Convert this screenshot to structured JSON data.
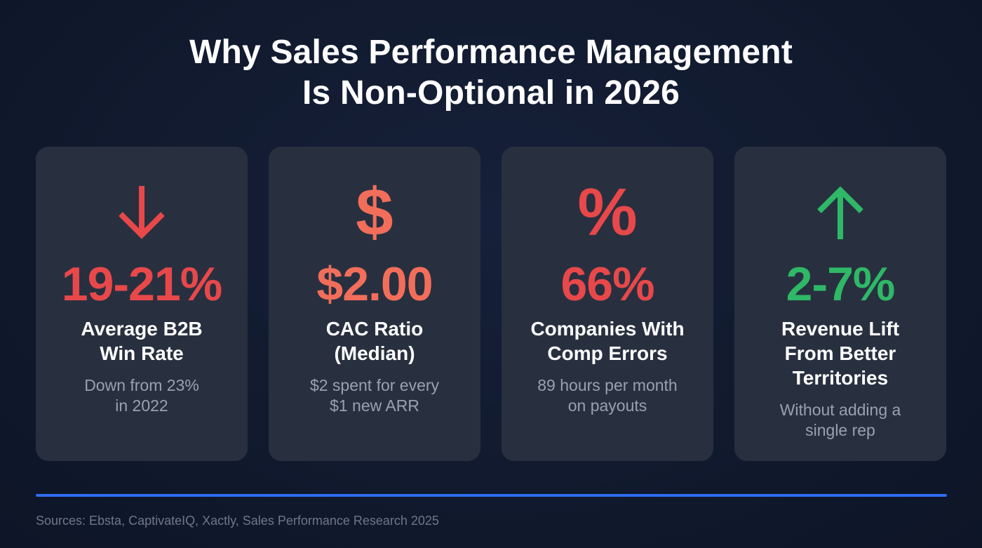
{
  "title": {
    "line1": "Why Sales Performance Management",
    "line2": "Is Non-Optional in 2026"
  },
  "cards": [
    {
      "icon": "arrow-down-icon",
      "color": "#e8484a",
      "value": "19-21%",
      "label_line1": "Average B2B",
      "label_line2": "Win Rate",
      "sub_line1": "Down from 23%",
      "sub_line2": "in 2022"
    },
    {
      "icon": "dollar-icon",
      "icon_glyph": "$",
      "color": "#f26e5a",
      "value": "$2.00",
      "label_line1": "CAC Ratio",
      "label_line2": "(Median)",
      "sub_line1": "$2 spent for every",
      "sub_line2": "$1 new ARR"
    },
    {
      "icon": "percent-icon",
      "icon_glyph": "%",
      "color": "#e8484a",
      "value": "66%",
      "label_line1": "Companies With",
      "label_line2": "Comp Errors",
      "sub_line1": "89 hours per month",
      "sub_line2": "on payouts"
    },
    {
      "icon": "arrow-up-icon",
      "color": "#2fb866",
      "value": "2-7%",
      "label_line1": "Revenue Lift",
      "label_line2": "From Better",
      "label_line3": "Territories",
      "sub_line1": "Without adding a",
      "sub_line2": "single rep"
    }
  ],
  "colors": {
    "background": "#111a2e",
    "card": "#283040",
    "accent_line": "#2f6cf0"
  },
  "footer": {
    "sources": "Sources: Ebsta, CaptivateIQ, Xactly, Sales Performance Research 2025"
  }
}
